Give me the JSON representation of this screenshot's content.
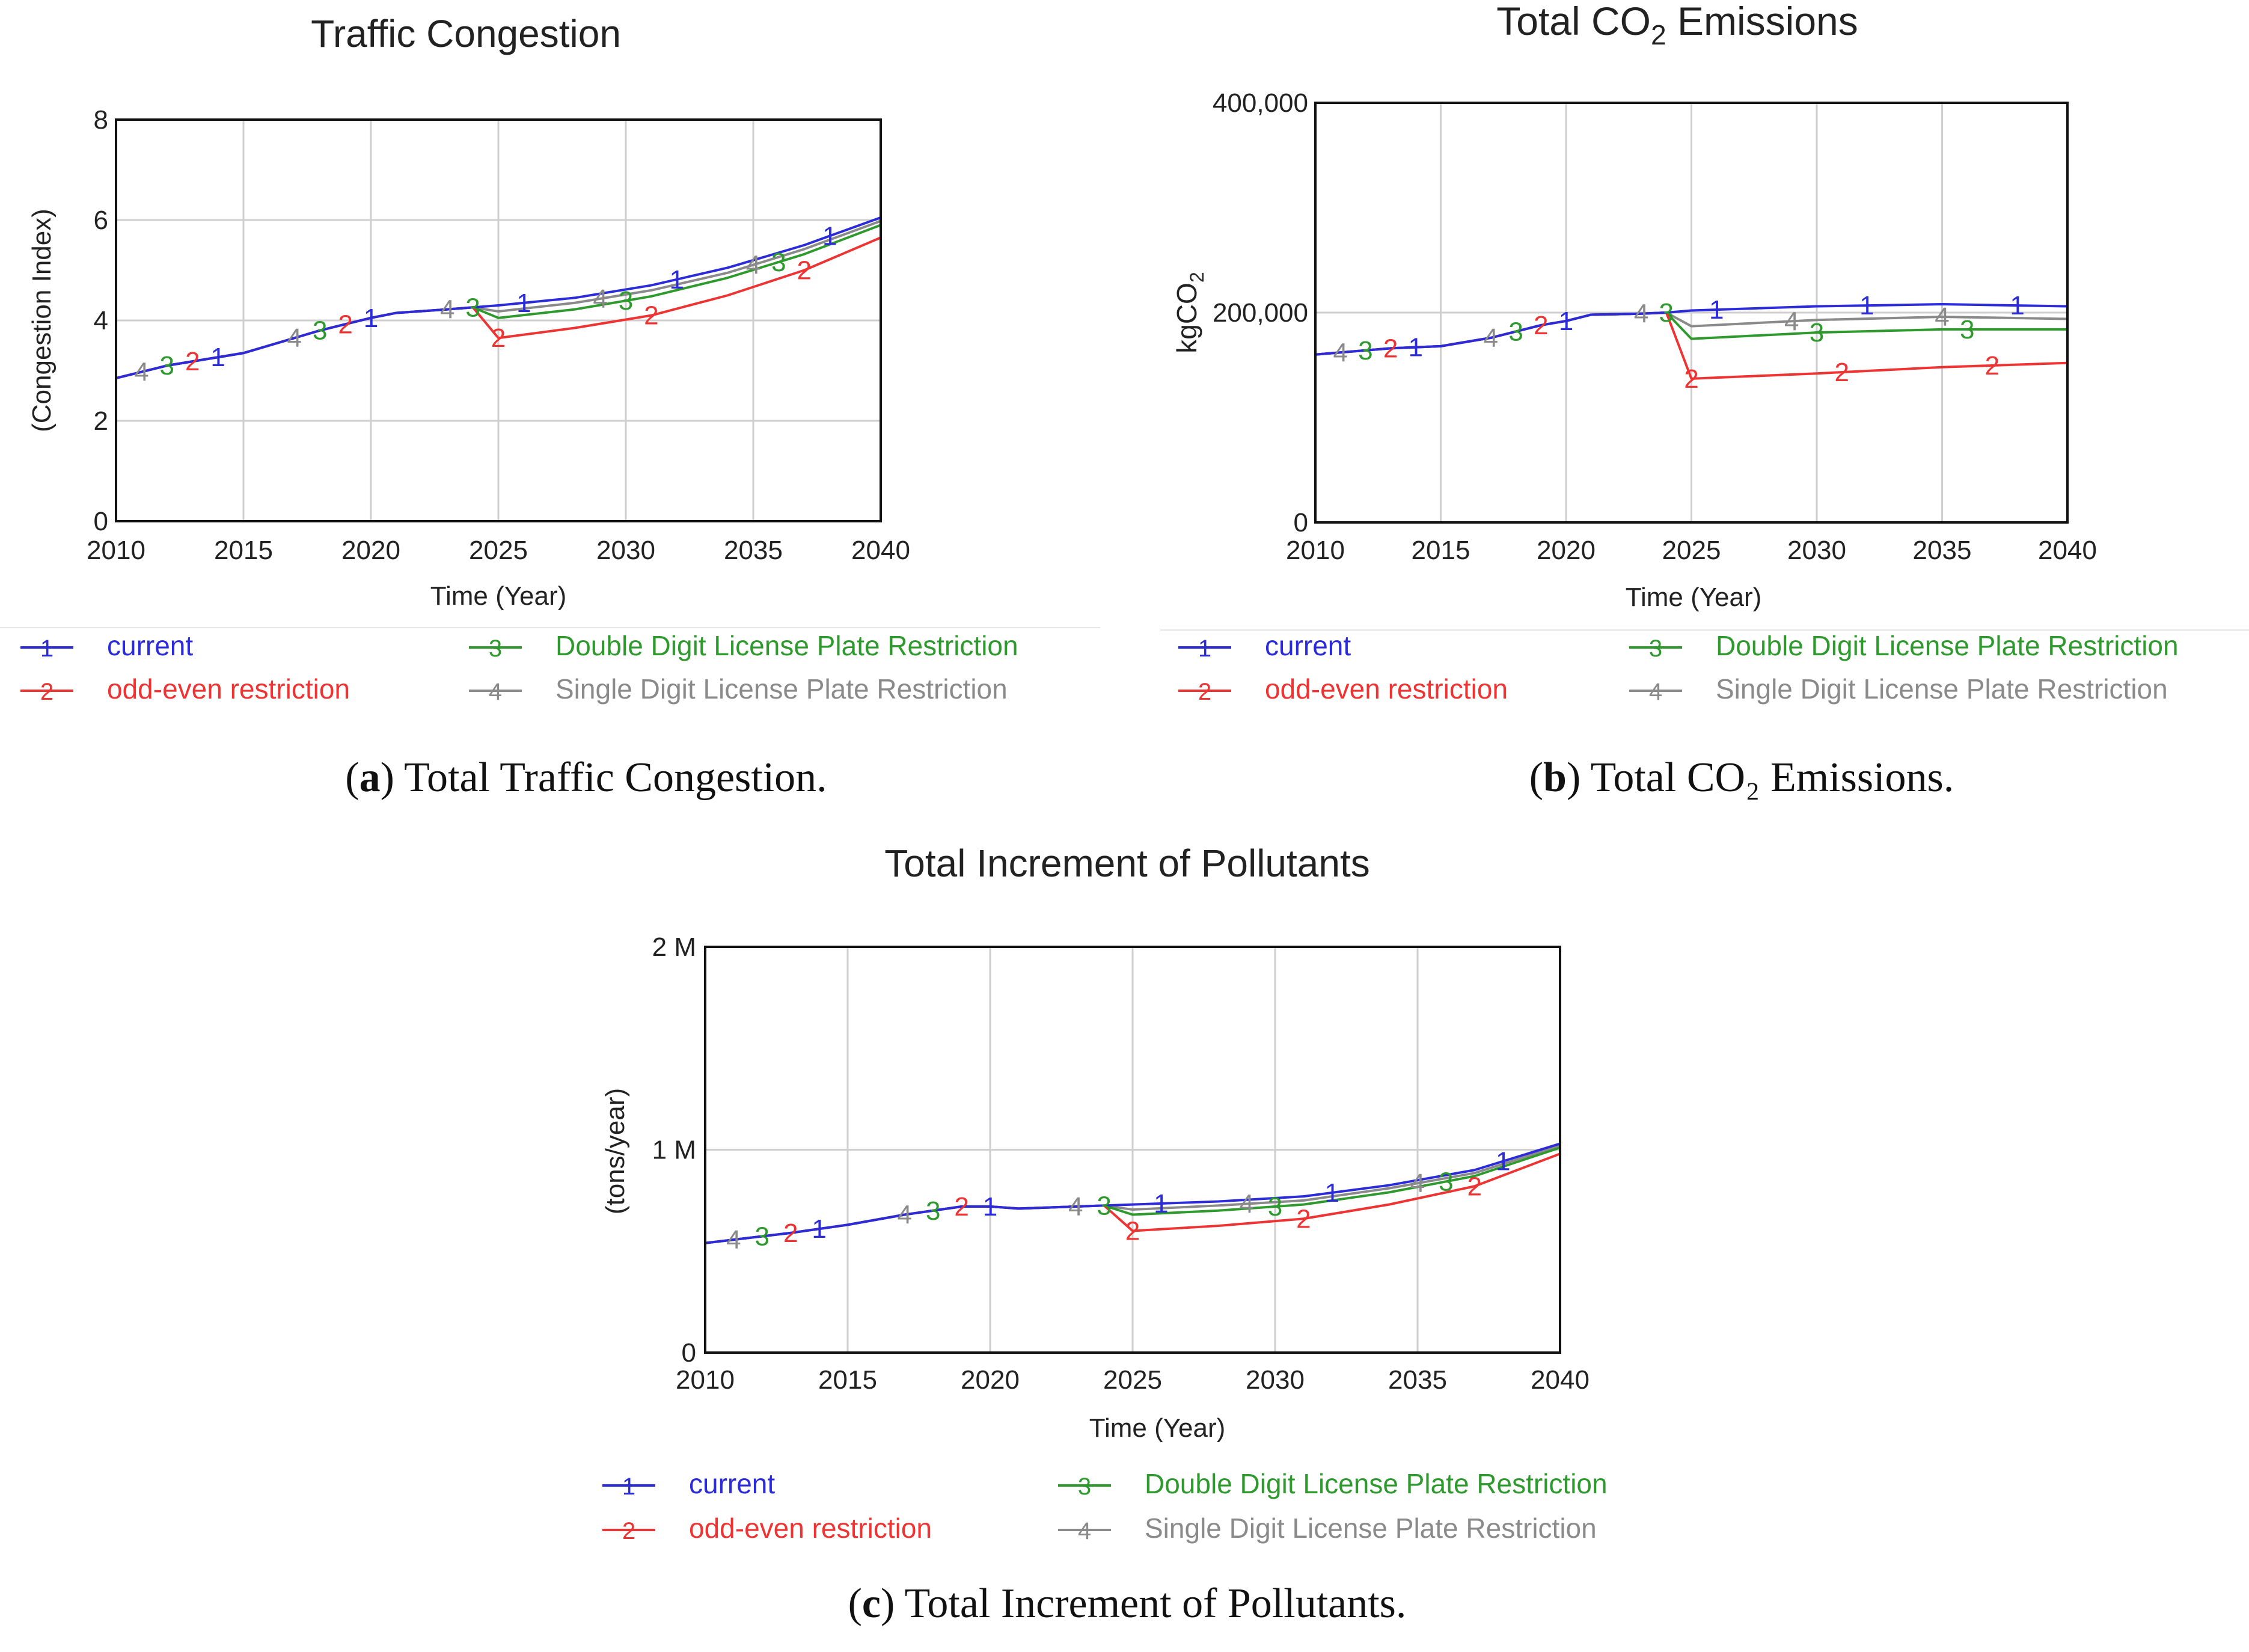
{
  "chart_data": [
    {
      "id": "a",
      "type": "line",
      "title": "Traffic Congestion",
      "xlabel": "Time (Year)",
      "ylabel": "(Congestion Index)",
      "xlim": [
        2010,
        2040
      ],
      "ylim": [
        0,
        8
      ],
      "x_ticks": [
        "2010",
        "2015",
        "2020",
        "2025",
        "2030",
        "2035",
        "2040"
      ],
      "y_ticks": [
        "0",
        "2",
        "4",
        "6",
        "8"
      ],
      "grid": true,
      "legend_position": "bottom",
      "caption": {
        "label": "a",
        "text": "Total Traffic Congestion."
      },
      "series": [
        {
          "name": "current",
          "marker": "1",
          "color": "#2b2bd9",
          "x": [
            2010,
            2012,
            2015,
            2018,
            2020,
            2021,
            2023,
            2024,
            2025,
            2028,
            2031,
            2034,
            2037,
            2040
          ],
          "values": [
            2.85,
            3.1,
            3.35,
            3.8,
            4.05,
            4.15,
            4.22,
            4.26,
            4.3,
            4.45,
            4.7,
            5.05,
            5.5,
            6.05
          ],
          "marker_x": [
            2014,
            2020,
            2026,
            2032,
            2038
          ]
        },
        {
          "name": "odd-even restriction",
          "marker": "2",
          "color": "#ee3333",
          "x": [
            2010,
            2012,
            2015,
            2018,
            2020,
            2021,
            2023,
            2024,
            2025,
            2028,
            2031,
            2034,
            2037,
            2040
          ],
          "values": [
            2.85,
            3.1,
            3.35,
            3.8,
            4.05,
            4.15,
            4.22,
            4.26,
            3.65,
            3.85,
            4.1,
            4.5,
            5.0,
            5.65
          ],
          "marker_x": [
            2013,
            2019,
            2025,
            2031,
            2037
          ]
        },
        {
          "name": "Double Digit License Plate Restriction",
          "marker": "3",
          "color": "#2e9a2e",
          "x": [
            2010,
            2012,
            2015,
            2018,
            2020,
            2021,
            2023,
            2024,
            2025,
            2028,
            2031,
            2034,
            2037,
            2040
          ],
          "values": [
            2.85,
            3.1,
            3.35,
            3.8,
            4.05,
            4.15,
            4.22,
            4.26,
            4.05,
            4.22,
            4.48,
            4.85,
            5.32,
            5.9
          ],
          "marker_x": [
            2012,
            2018,
            2024,
            2030,
            2036
          ]
        },
        {
          "name": "Single Digit License Plate Restriction",
          "marker": "4",
          "color": "#8a8a8a",
          "x": [
            2010,
            2012,
            2015,
            2018,
            2020,
            2021,
            2023,
            2024,
            2025,
            2028,
            2031,
            2034,
            2037,
            2040
          ],
          "values": [
            2.85,
            3.1,
            3.35,
            3.8,
            4.05,
            4.15,
            4.22,
            4.26,
            4.18,
            4.35,
            4.6,
            4.95,
            5.42,
            5.98
          ],
          "marker_x": [
            2011,
            2017,
            2023,
            2029,
            2035
          ]
        }
      ]
    },
    {
      "id": "b",
      "type": "line",
      "title": "Total CO",
      "title_subscript": "2",
      "title_suffix": " Emissions",
      "xlabel": "Time (Year)",
      "ylabel": "kgCO",
      "ylabel_subscript": "2",
      "xlim": [
        2010,
        2040
      ],
      "ylim": [
        0,
        400000
      ],
      "x_ticks": [
        "2010",
        "2015",
        "2020",
        "2025",
        "2030",
        "2035",
        "2040"
      ],
      "y_ticks": [
        "0",
        "200,000",
        "400,000"
      ],
      "grid": true,
      "legend_position": "bottom",
      "caption": {
        "label": "b",
        "text": "Total CO₂ Emissions."
      },
      "series": [
        {
          "name": "current",
          "marker": "1",
          "color": "#2b2bd9",
          "x": [
            2010,
            2013,
            2015,
            2017,
            2019,
            2020,
            2021,
            2023,
            2024,
            2025,
            2030,
            2035,
            2040
          ],
          "values": [
            160000,
            166000,
            168000,
            176000,
            188000,
            192000,
            198000,
            199000,
            200000,
            202000,
            206000,
            208000,
            206000
          ],
          "marker_x": [
            2014,
            2020,
            2026,
            2032,
            2038
          ]
        },
        {
          "name": "odd-even restriction",
          "marker": "2",
          "color": "#ee3333",
          "x": [
            2010,
            2013,
            2015,
            2017,
            2019,
            2020,
            2021,
            2023,
            2024,
            2025,
            2030,
            2035,
            2040
          ],
          "values": [
            160000,
            166000,
            168000,
            176000,
            188000,
            192000,
            198000,
            199000,
            200000,
            137000,
            142000,
            148000,
            152000
          ],
          "marker_x": [
            2013,
            2019,
            2025,
            2031,
            2037
          ]
        },
        {
          "name": "Double Digit License Plate Restriction",
          "marker": "3",
          "color": "#2e9a2e",
          "x": [
            2010,
            2013,
            2015,
            2017,
            2019,
            2020,
            2021,
            2023,
            2024,
            2025,
            2030,
            2035,
            2040
          ],
          "values": [
            160000,
            166000,
            168000,
            176000,
            188000,
            192000,
            198000,
            199000,
            200000,
            175000,
            181000,
            184000,
            184000
          ],
          "marker_x": [
            2012,
            2018,
            2024,
            2030,
            2036
          ]
        },
        {
          "name": "Single Digit License Plate Restriction",
          "marker": "4",
          "color": "#8a8a8a",
          "x": [
            2010,
            2013,
            2015,
            2017,
            2019,
            2020,
            2021,
            2023,
            2024,
            2025,
            2030,
            2035,
            2040
          ],
          "values": [
            160000,
            166000,
            168000,
            176000,
            188000,
            192000,
            198000,
            199000,
            200000,
            187000,
            193000,
            196000,
            194000
          ],
          "marker_x": [
            2011,
            2017,
            2023,
            2029,
            2035
          ]
        }
      ]
    },
    {
      "id": "c",
      "type": "line",
      "title": "Total Increment of Pollutants",
      "xlabel": "Time (Year)",
      "ylabel": "(tons/year)",
      "xlim": [
        2010,
        2040
      ],
      "ylim": [
        0,
        2000000
      ],
      "x_ticks": [
        "2010",
        "2015",
        "2020",
        "2025",
        "2030",
        "2035",
        "2040"
      ],
      "y_ticks": [
        "0",
        "1 M",
        "2 M"
      ],
      "grid": true,
      "legend_position": "bottom",
      "caption": {
        "label": "c",
        "text": "Total Increment of Pollutants."
      },
      "series": [
        {
          "name": "current",
          "marker": "1",
          "color": "#2b2bd9",
          "x": [
            2010,
            2013,
            2015,
            2017,
            2019,
            2020,
            2021,
            2023,
            2024,
            2025,
            2028,
            2031,
            2034,
            2037,
            2040
          ],
          "values": [
            540000,
            590000,
            630000,
            680000,
            720000,
            720000,
            710000,
            720000,
            725000,
            730000,
            745000,
            770000,
            825000,
            900000,
            1030000
          ],
          "marker_x": [
            2014,
            2020,
            2026,
            2032,
            2038
          ]
        },
        {
          "name": "odd-even restriction",
          "marker": "2",
          "color": "#ee3333",
          "x": [
            2010,
            2013,
            2015,
            2017,
            2019,
            2020,
            2021,
            2023,
            2024,
            2025,
            2028,
            2031,
            2034,
            2037,
            2040
          ],
          "values": [
            540000,
            590000,
            630000,
            680000,
            720000,
            720000,
            710000,
            720000,
            725000,
            600000,
            625000,
            660000,
            730000,
            820000,
            980000
          ],
          "marker_x": [
            2013,
            2019,
            2025,
            2031,
            2037
          ]
        },
        {
          "name": "Double Digit License Plate Restriction",
          "marker": "3",
          "color": "#2e9a2e",
          "x": [
            2010,
            2013,
            2015,
            2017,
            2019,
            2020,
            2021,
            2023,
            2024,
            2025,
            2028,
            2031,
            2034,
            2037,
            2040
          ],
          "values": [
            540000,
            590000,
            630000,
            680000,
            720000,
            720000,
            710000,
            720000,
            725000,
            680000,
            700000,
            730000,
            790000,
            870000,
            1010000
          ],
          "marker_x": [
            2012,
            2018,
            2024,
            2030,
            2036
          ]
        },
        {
          "name": "Single Digit License Plate Restriction",
          "marker": "4",
          "color": "#8a8a8a",
          "x": [
            2010,
            2013,
            2015,
            2017,
            2019,
            2020,
            2021,
            2023,
            2024,
            2025,
            2028,
            2031,
            2034,
            2037,
            2040
          ],
          "values": [
            540000,
            590000,
            630000,
            680000,
            720000,
            720000,
            710000,
            720000,
            725000,
            705000,
            725000,
            750000,
            810000,
            885000,
            1020000
          ],
          "marker_x": [
            2011,
            2017,
            2023,
            2029,
            2035
          ]
        }
      ]
    }
  ]
}
